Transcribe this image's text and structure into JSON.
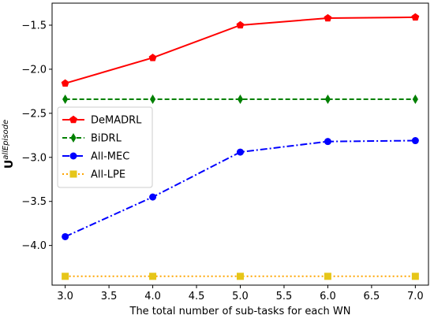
{
  "chart_data": {
    "type": "line",
    "xlabel": "The total number of sub-tasks for each WN",
    "ylabel_main": "U",
    "ylabel_sup": "allEpisode",
    "xlim": [
      2.85,
      7.15
    ],
    "ylim": [
      -4.45,
      -1.25
    ],
    "x_ticks": [
      "3.0",
      "3.5",
      "4.0",
      "4.5",
      "5.0",
      "5.5",
      "6.0",
      "6.5",
      "7.0"
    ],
    "y_ticks": [
      "-1.5",
      "-2.0",
      "-2.5",
      "-3.0",
      "-3.5",
      "-4.0"
    ],
    "grid": false,
    "legend_position": "center-left",
    "x": [
      3,
      4,
      5,
      6,
      7
    ],
    "series": [
      {
        "name": "DeMADRL",
        "values": [
          -2.16,
          -1.87,
          -1.5,
          -1.42,
          -1.41
        ],
        "color": "#ff0000",
        "marker": "pentagon",
        "line_style": "solid"
      },
      {
        "name": "BiDRL",
        "values": [
          -2.34,
          -2.34,
          -2.34,
          -2.34,
          -2.34
        ],
        "color": "#008000",
        "marker": "thin-diamond",
        "line_style": "dashed"
      },
      {
        "name": "All-MEC",
        "values": [
          -3.9,
          -3.45,
          -2.94,
          -2.82,
          -2.81
        ],
        "color": "#0000ff",
        "marker": "circle",
        "line_style": "dashdot"
      },
      {
        "name": "All-LPE",
        "values": [
          -4.35,
          -4.35,
          -4.35,
          -4.35,
          -4.35
        ],
        "color": "#ffa500",
        "marker": "square",
        "marker_color": "#e6c619",
        "line_style": "dotted"
      }
    ]
  }
}
